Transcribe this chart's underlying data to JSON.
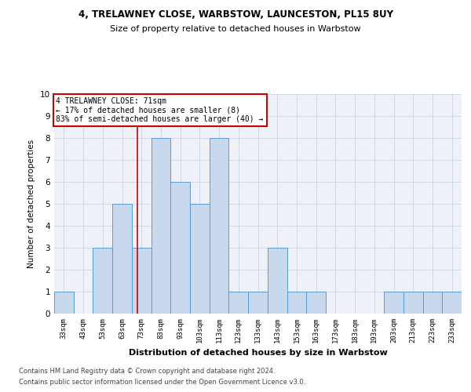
{
  "title1": "4, TRELAWNEY CLOSE, WARBSTOW, LAUNCESTON, PL15 8UY",
  "title2": "Size of property relative to detached houses in Warbstow",
  "xlabel": "Distribution of detached houses by size in Warbstow",
  "ylabel": "Number of detached properties",
  "categories": [
    "33sqm",
    "43sqm",
    "53sqm",
    "63sqm",
    "73sqm",
    "83sqm",
    "93sqm",
    "103sqm",
    "113sqm",
    "123sqm",
    "133sqm",
    "143sqm",
    "153sqm",
    "163sqm",
    "173sqm",
    "183sqm",
    "193sqm",
    "203sqm",
    "213sqm",
    "223sqm",
    "233sqm"
  ],
  "values": [
    1,
    0,
    3,
    5,
    3,
    8,
    6,
    5,
    8,
    1,
    1,
    3,
    1,
    1,
    0,
    0,
    0,
    1,
    1,
    1,
    1
  ],
  "bar_color": "#c8d9ed",
  "bar_edge_color": "#5b9bd5",
  "grid_color": "#d0d8e8",
  "bg_color": "#eef2f8",
  "annotation_text": "4 TRELAWNEY CLOSE: 71sqm\n← 17% of detached houses are smaller (8)\n83% of semi-detached houses are larger (40) →",
  "annotation_box_color": "#ffffff",
  "annotation_box_edge": "#cc0000",
  "vline_color": "#cc0000",
  "footer1": "Contains HM Land Registry data © Crown copyright and database right 2024.",
  "footer2": "Contains public sector information licensed under the Open Government Licence v3.0.",
  "ylim": [
    0,
    10
  ],
  "yticks": [
    0,
    1,
    2,
    3,
    4,
    5,
    6,
    7,
    8,
    9,
    10
  ]
}
